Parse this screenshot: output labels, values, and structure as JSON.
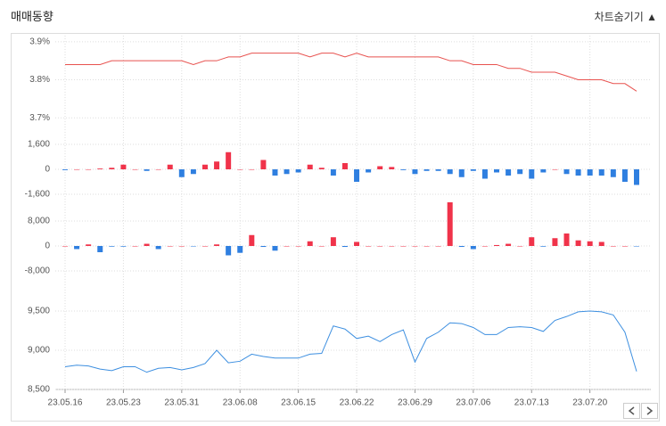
{
  "header": {
    "title": "매매동향",
    "toggle": "차트숨기기"
  },
  "chart_data": [
    {
      "type": "line",
      "color": "#e8524f",
      "ylim": [
        3.67,
        3.916
      ],
      "yticks": [
        {
          "value": 3.7,
          "label": "3.7%"
        },
        {
          "value": 3.8,
          "label": "3.8%"
        },
        {
          "value": 3.9,
          "label": "3.9%"
        }
      ],
      "values": [
        3.84,
        3.84,
        3.84,
        3.84,
        3.85,
        3.85,
        3.85,
        3.85,
        3.85,
        3.85,
        3.85,
        3.84,
        3.85,
        3.85,
        3.86,
        3.86,
        3.87,
        3.87,
        3.87,
        3.87,
        3.87,
        3.86,
        3.87,
        3.87,
        3.86,
        3.87,
        3.86,
        3.86,
        3.86,
        3.86,
        3.86,
        3.86,
        3.86,
        3.85,
        3.85,
        3.84,
        3.84,
        3.84,
        3.83,
        3.83,
        3.82,
        3.82,
        3.82,
        3.81,
        3.8,
        3.8,
        3.8,
        3.79,
        3.79,
        3.77
      ]
    },
    {
      "type": "bar",
      "up_color": "#f0334a",
      "down_color": "#2f7fe0",
      "ylim": [
        -2000,
        2000
      ],
      "yticks": [
        {
          "value": -1600,
          "label": "-1,600"
        },
        0,
        {
          "value": 1600,
          "label": "1,600"
        }
      ],
      "values": [
        -50,
        0,
        0,
        50,
        100,
        300,
        0,
        -100,
        0,
        300,
        -500,
        -300,
        300,
        500,
        1100,
        0,
        0,
        600,
        -400,
        -300,
        -200,
        300,
        100,
        -400,
        400,
        -800,
        -200,
        200,
        150,
        -50,
        -300,
        -100,
        -100,
        -300,
        -500,
        -100,
        -600,
        -200,
        -400,
        -300,
        -600,
        -200,
        0,
        -300,
        -400,
        -400,
        -400,
        -500,
        -800,
        -1000
      ]
    },
    {
      "type": "bar",
      "up_color": "#f0334a",
      "down_color": "#2f7fe0",
      "ylim": [
        -12000,
        16000
      ],
      "yticks": [
        {
          "value": -8000,
          "label": "-8,000"
        },
        0,
        {
          "value": 8000,
          "label": "8,000"
        }
      ],
      "values": [
        0,
        -1000,
        500,
        -2000,
        -200,
        -200,
        0,
        700,
        -1000,
        0,
        0,
        -100,
        0,
        500,
        -3000,
        -2200,
        3500,
        -300,
        -1500,
        0,
        0,
        1500,
        0,
        2800,
        -300,
        1300,
        0,
        0,
        0,
        0,
        0,
        0,
        0,
        14000,
        -300,
        -1000,
        0,
        300,
        700,
        0,
        2800,
        -200,
        2500,
        4000,
        1800,
        1500,
        1300,
        0,
        0,
        -100
      ]
    },
    {
      "type": "line",
      "color": "#3d8fe0",
      "ylim": [
        8500,
        9650
      ],
      "yticks": [
        {
          "value": 8500,
          "label": "8,500"
        },
        {
          "value": 9000,
          "label": "9,000"
        },
        {
          "value": 9500,
          "label": "9,500"
        }
      ],
      "categories": [
        "23.05.16",
        null,
        null,
        null,
        null,
        "23.05.23",
        null,
        null,
        null,
        null,
        "23.05.31",
        null,
        null,
        null,
        null,
        "23.06.08",
        null,
        null,
        null,
        null,
        "23.06.15",
        null,
        null,
        null,
        null,
        "23.06.22",
        null,
        null,
        null,
        null,
        "23.06.29",
        null,
        null,
        null,
        null,
        "23.07.06",
        null,
        null,
        null,
        null,
        "23.07.13",
        null,
        null,
        null,
        null,
        "23.07.20",
        null,
        null,
        null,
        null
      ],
      "values": [
        8790,
        8810,
        8800,
        8760,
        8740,
        8790,
        8790,
        8720,
        8770,
        8780,
        8750,
        8780,
        8830,
        9000,
        8840,
        8860,
        8950,
        8920,
        8900,
        8900,
        8900,
        8950,
        8960,
        9310,
        9270,
        9150,
        9180,
        9110,
        9200,
        9260,
        8850,
        9150,
        9230,
        9350,
        9340,
        9290,
        9200,
        9200,
        9290,
        9300,
        9290,
        9240,
        9380,
        9430,
        9490,
        9500,
        9490,
        9450,
        9230,
        8730
      ]
    }
  ]
}
